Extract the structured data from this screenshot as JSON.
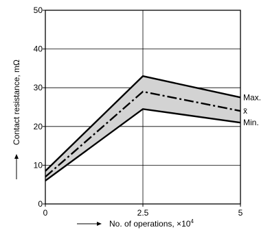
{
  "chart_data": {
    "type": "line",
    "title": "",
    "xlabel": "No. of operations, ×10",
    "xlabel_superscript": "4",
    "ylabel": "Contact resistance, mΩ",
    "xlim": [
      0,
      5
    ],
    "ylim": [
      0,
      50
    ],
    "x_ticks": [
      0,
      2.5,
      5
    ],
    "x_tick_labels": [
      "0",
      "2.5",
      "5"
    ],
    "y_ticks": [
      0,
      10,
      20,
      30,
      40,
      50
    ],
    "y_tick_labels": [
      "0",
      "10",
      "20",
      "30",
      "40",
      "50"
    ],
    "grid": true,
    "band_fill_color": "#d3d3d3",
    "line_color": "#000000",
    "series": [
      {
        "name": "Max.",
        "style": "solid",
        "x": [
          0,
          2.5,
          5
        ],
        "y": [
          8.5,
          33,
          27.5
        ]
      },
      {
        "name": "x̄",
        "style": "dashdot",
        "x": [
          0,
          2.5,
          5
        ],
        "y": [
          7,
          29,
          24
        ]
      },
      {
        "name": "Min.",
        "style": "solid",
        "x": [
          0,
          2.5,
          5
        ],
        "y": [
          6,
          24.5,
          21
        ]
      }
    ]
  }
}
